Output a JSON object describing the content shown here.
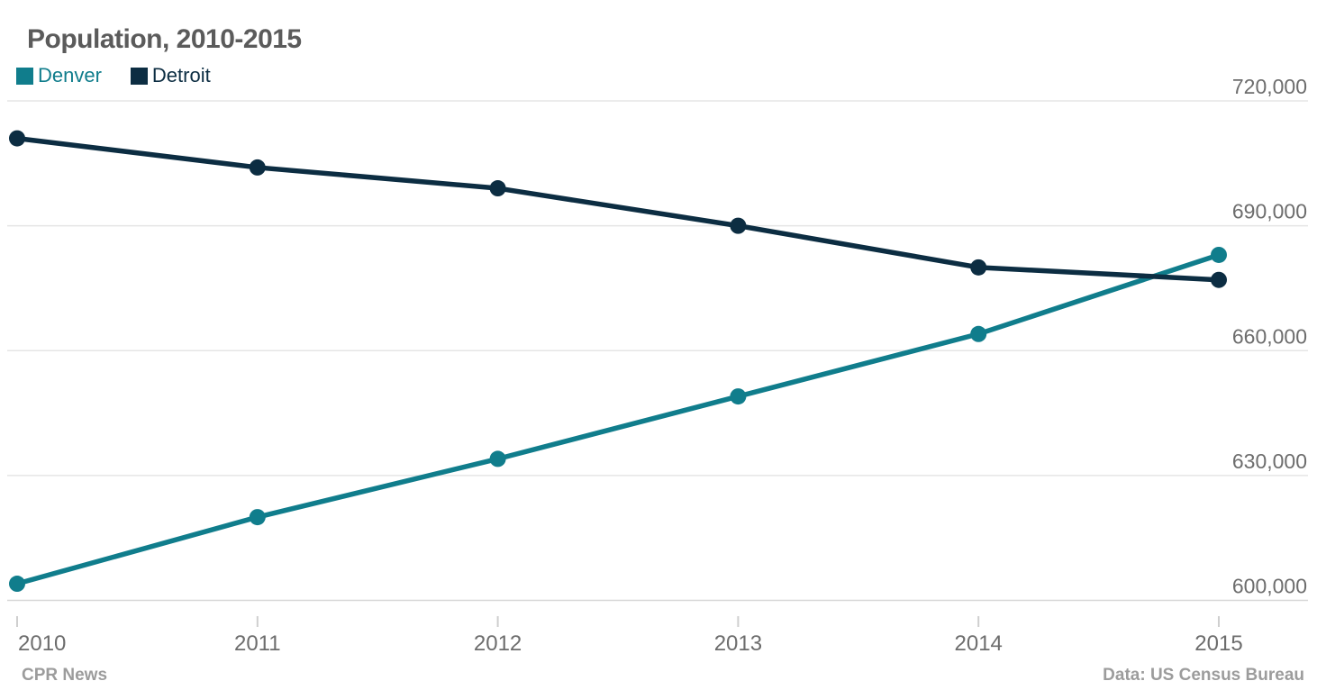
{
  "chart": {
    "title": "Population, 2010-2015",
    "source_left": "CPR News",
    "source_right": "Data: US Census Bureau"
  },
  "chart_data": {
    "type": "line",
    "title": "Population, 2010-2015",
    "x": [
      2010,
      2011,
      2012,
      2013,
      2014,
      2015
    ],
    "x_tick_labels": [
      "2010",
      "2011",
      "2012",
      "2013",
      "2014",
      "2015"
    ],
    "series": [
      {
        "name": "Denver",
        "color": "#107d8c",
        "values": [
          604000,
          620000,
          634000,
          649000,
          664000,
          683000
        ]
      },
      {
        "name": "Detroit",
        "color": "#0c2d42",
        "values": [
          711000,
          704000,
          699000,
          690000,
          680000,
          677000
        ]
      }
    ],
    "y_ticks": [
      {
        "value": 600000,
        "label": "600,000"
      },
      {
        "value": 630000,
        "label": "630,000"
      },
      {
        "value": 660000,
        "label": "660,000"
      },
      {
        "value": 690000,
        "label": "690,000"
      },
      {
        "value": 720000,
        "label": "720,000"
      }
    ],
    "ylim": [
      600000,
      720000
    ],
    "xlabel": "",
    "ylabel": "",
    "grid": true,
    "legend_position": "top-left",
    "colors": {
      "grid": "#e5e5e5",
      "baseline": "#d7d7d7",
      "tick": "#cfcfcf",
      "axis_text": "#6d6d6d",
      "title_text": "#5b5b5b",
      "footer_text": "#9c9c9c"
    }
  }
}
